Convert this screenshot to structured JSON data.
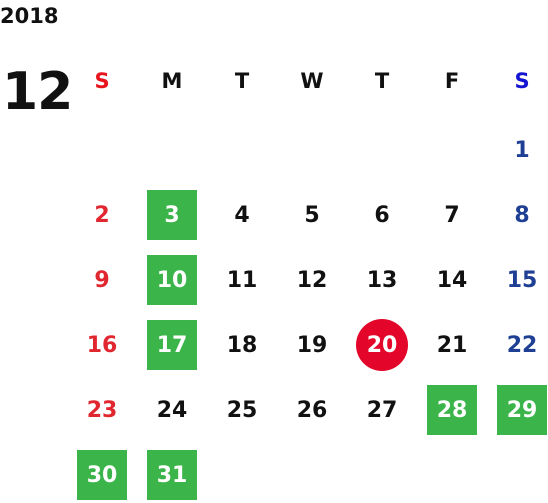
{
  "calendar": {
    "year": "2018",
    "month": "12",
    "weekdays": [
      "S",
      "M",
      "T",
      "W",
      "T",
      "F",
      "S"
    ],
    "weeks": [
      [
        null,
        null,
        null,
        null,
        null,
        null,
        {
          "day": "1"
        }
      ],
      [
        {
          "day": "2"
        },
        {
          "day": "3",
          "highlight": "holiday"
        },
        {
          "day": "4"
        },
        {
          "day": "5"
        },
        {
          "day": "6"
        },
        {
          "day": "7"
        },
        {
          "day": "8"
        }
      ],
      [
        {
          "day": "9"
        },
        {
          "day": "10",
          "highlight": "holiday"
        },
        {
          "day": "11"
        },
        {
          "day": "12"
        },
        {
          "day": "13"
        },
        {
          "day": "14"
        },
        {
          "day": "15"
        }
      ],
      [
        {
          "day": "16"
        },
        {
          "day": "17",
          "highlight": "holiday"
        },
        {
          "day": "18"
        },
        {
          "day": "19"
        },
        {
          "day": "20",
          "highlight": "today"
        },
        {
          "day": "21"
        },
        {
          "day": "22"
        }
      ],
      [
        {
          "day": "23"
        },
        {
          "day": "24"
        },
        {
          "day": "25"
        },
        {
          "day": "26"
        },
        {
          "day": "27"
        },
        {
          "day": "28",
          "highlight": "holiday"
        },
        {
          "day": "29",
          "highlight": "holiday"
        }
      ],
      [
        {
          "day": "30",
          "highlight": "holiday"
        },
        {
          "day": "31",
          "highlight": "holiday"
        },
        null,
        null,
        null,
        null,
        null
      ]
    ],
    "colors": {
      "sunday": "#e0262f",
      "saturday": "#1e3f94",
      "holiday": "#3bb44a",
      "today": "#e3062a"
    }
  }
}
